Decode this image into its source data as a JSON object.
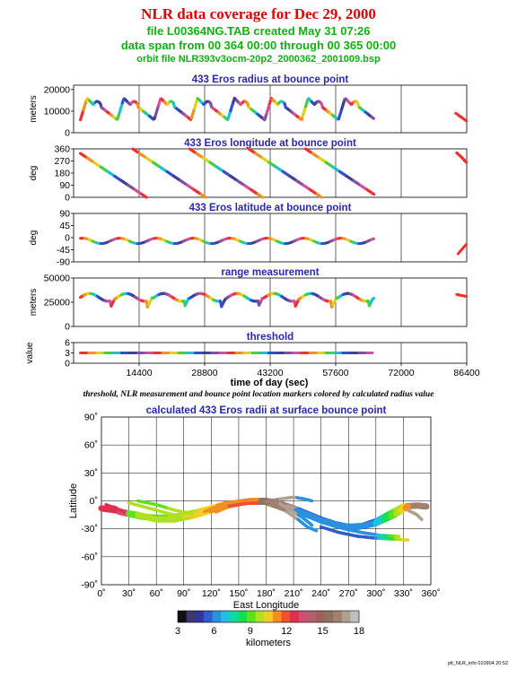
{
  "header": {
    "title": "NLR data coverage for Dec 29, 2000",
    "line1": "file L00364NG.TAB created May 31 07:26",
    "line2": "data span from 00 364 00:00 through 00 365 00:00",
    "line3": "orbit file NLR393v3ocm-20p2_2000362_2001009.bsp"
  },
  "caption": "threshold, NLR measurement and bounce point location markers colored by calculated radius value",
  "footer": "plt_NLR_info 010904 20:52",
  "chart_data": [
    {
      "type": "scatter",
      "title": "433 Eros radius at bounce point",
      "ylabel": "meters",
      "ylim": [
        0,
        22000
      ],
      "yticks": [
        "0",
        "10000",
        "20000"
      ],
      "yticks_values": [
        0,
        10000,
        20000
      ],
      "xlim": [
        0,
        86400
      ]
    },
    {
      "type": "scatter",
      "title": "433 Eros longitude at bounce point",
      "ylabel": "deg",
      "ylim": [
        0,
        360
      ],
      "yticks": [
        "0",
        "90",
        "180",
        "270",
        "360"
      ],
      "yticks_values": [
        0,
        90,
        180,
        270,
        360
      ],
      "xlim": [
        0,
        86400
      ]
    },
    {
      "type": "scatter",
      "title": "433 Eros latitude at bounce point",
      "ylabel": "deg",
      "ylim": [
        -90,
        90
      ],
      "yticks": [
        "-90",
        "-45",
        "0",
        "45",
        "90"
      ],
      "yticks_values": [
        -90,
        -45,
        0,
        45,
        90
      ],
      "xlim": [
        0,
        86400
      ]
    },
    {
      "type": "scatter",
      "title": "range measurement",
      "ylabel": "meters",
      "ylim": [
        0,
        50000
      ],
      "yticks": [
        "0",
        "25000",
        "50000"
      ],
      "yticks_values": [
        0,
        25000,
        50000
      ],
      "xlim": [
        0,
        86400
      ]
    },
    {
      "type": "scatter",
      "title": "threshold",
      "ylabel": "value",
      "ylim": [
        0,
        6
      ],
      "yticks": [
        "0",
        "3",
        "6"
      ],
      "yticks_values": [
        0,
        3,
        6
      ],
      "xlim": [
        0,
        86400
      ],
      "xticks": [
        "14400",
        "28800",
        "43200",
        "57600",
        "72000",
        "86400"
      ],
      "xticks_values": [
        14400,
        28800,
        43200,
        57600,
        72000,
        86400
      ],
      "xlabel": "time of day (sec)",
      "values_constant": 3
    },
    {
      "type": "scatter",
      "title": "calculated 433 Eros radii at surface bounce point",
      "xlabel": "East Longitude",
      "ylabel": "Latitude",
      "xlim": [
        0,
        360
      ],
      "ylim": [
        -90,
        90
      ],
      "xticks": [
        "0˚",
        "30˚",
        "60˚",
        "90˚",
        "120˚",
        "150˚",
        "180˚",
        "210˚",
        "240˚",
        "270˚",
        "300˚",
        "330˚",
        "360˚"
      ],
      "xticks_values": [
        0,
        30,
        60,
        90,
        120,
        150,
        180,
        210,
        240,
        270,
        300,
        330,
        360
      ],
      "yticks": [
        "-90˚",
        "-60˚",
        "-30˚",
        "0˚",
        "30˚",
        "60˚",
        "90˚"
      ],
      "yticks_values": [
        -90,
        -60,
        -30,
        0,
        30,
        60,
        90
      ],
      "grid": true,
      "tracks": [
        [
          [
            0,
            -8
          ],
          [
            15,
            -10
          ],
          [
            30,
            -14
          ],
          [
            45,
            -17
          ],
          [
            60,
            -18
          ],
          [
            75,
            -18
          ],
          [
            90,
            -15
          ],
          [
            105,
            -12
          ],
          [
            120,
            -8
          ],
          [
            135,
            -4
          ],
          [
            150,
            -2
          ],
          [
            165,
            0
          ],
          [
            180,
            0
          ],
          [
            195,
            -3
          ],
          [
            210,
            -8
          ],
          [
            225,
            -14
          ],
          [
            240,
            -20
          ],
          [
            255,
            -25
          ],
          [
            270,
            -28
          ],
          [
            285,
            -27
          ],
          [
            300,
            -22
          ],
          [
            315,
            -14
          ],
          [
            330,
            -6
          ],
          [
            345,
            -5
          ],
          [
            355,
            -6
          ]
        ],
        [
          [
            20,
            -12
          ],
          [
            40,
            -15
          ],
          [
            60,
            -20
          ],
          [
            80,
            -20
          ],
          [
            100,
            -16
          ],
          [
            120,
            -10
          ],
          [
            140,
            -4
          ],
          [
            160,
            -1
          ],
          [
            180,
            -1
          ],
          [
            200,
            -6
          ],
          [
            220,
            -13
          ],
          [
            240,
            -21
          ],
          [
            260,
            -27
          ],
          [
            280,
            -28
          ],
          [
            300,
            -24
          ],
          [
            320,
            -15
          ],
          [
            335,
            -6
          ]
        ],
        [
          [
            30,
            -2
          ],
          [
            45,
            -6
          ],
          [
            60,
            -10
          ],
          [
            75,
            -14
          ],
          [
            90,
            -17
          ],
          [
            105,
            -14
          ],
          [
            120,
            -9
          ]
        ],
        [
          [
            40,
            0
          ],
          [
            60,
            -4
          ],
          [
            80,
            -10
          ],
          [
            100,
            -14
          ]
        ],
        [
          [
            180,
            -3
          ],
          [
            200,
            -10
          ],
          [
            215,
            -20
          ],
          [
            225,
            -28
          ],
          [
            235,
            -32
          ]
        ],
        [
          [
            190,
            0
          ],
          [
            205,
            -9
          ],
          [
            220,
            -18
          ],
          [
            230,
            -26
          ]
        ],
        [
          [
            130,
            -4
          ],
          [
            140,
            -2
          ],
          [
            150,
            -1
          ],
          [
            160,
            0
          ],
          [
            170,
            1
          ]
        ],
        [
          [
            125,
            -12
          ],
          [
            140,
            -6
          ],
          [
            155,
            -3
          ],
          [
            170,
            -2
          ]
        ],
        [
          [
            180,
            -1
          ],
          [
            195,
            2
          ],
          [
            210,
            4
          ],
          [
            222,
            2
          ],
          [
            230,
            0
          ]
        ],
        [
          [
            240,
            -28
          ],
          [
            260,
            -34
          ],
          [
            280,
            -38
          ],
          [
            300,
            -40
          ],
          [
            320,
            -41
          ],
          [
            335,
            -42
          ]
        ],
        [
          [
            245,
            -24
          ],
          [
            265,
            -30
          ],
          [
            285,
            -34
          ],
          [
            305,
            -37
          ],
          [
            325,
            -38
          ]
        ],
        [
          [
            335,
            -10
          ],
          [
            345,
            -15
          ],
          [
            350,
            -20
          ]
        ],
        [
          [
            5,
            -4
          ],
          [
            10,
            -6
          ],
          [
            15,
            -7
          ],
          [
            20,
            -10
          ],
          [
            25,
            -12
          ]
        ]
      ]
    }
  ],
  "colorbar": {
    "min": 3,
    "max": 18,
    "ticks": [
      "3",
      "6",
      "9",
      "12",
      "15",
      "18"
    ],
    "ticks_values": [
      3,
      6,
      9,
      12,
      15,
      18
    ],
    "label": "kilometers",
    "colors": [
      "#101010",
      "#3a3a6a",
      "#3434a0",
      "#2e5cc8",
      "#2a90e0",
      "#20c0e0",
      "#10d8a0",
      "#10e050",
      "#60e020",
      "#b0e020",
      "#f0d020",
      "#f09020",
      "#f05030",
      "#e03050",
      "#d05070",
      "#b06070",
      "#a06060",
      "#907060",
      "#a08070",
      "#b0a090",
      "#c0c0c0"
    ]
  }
}
